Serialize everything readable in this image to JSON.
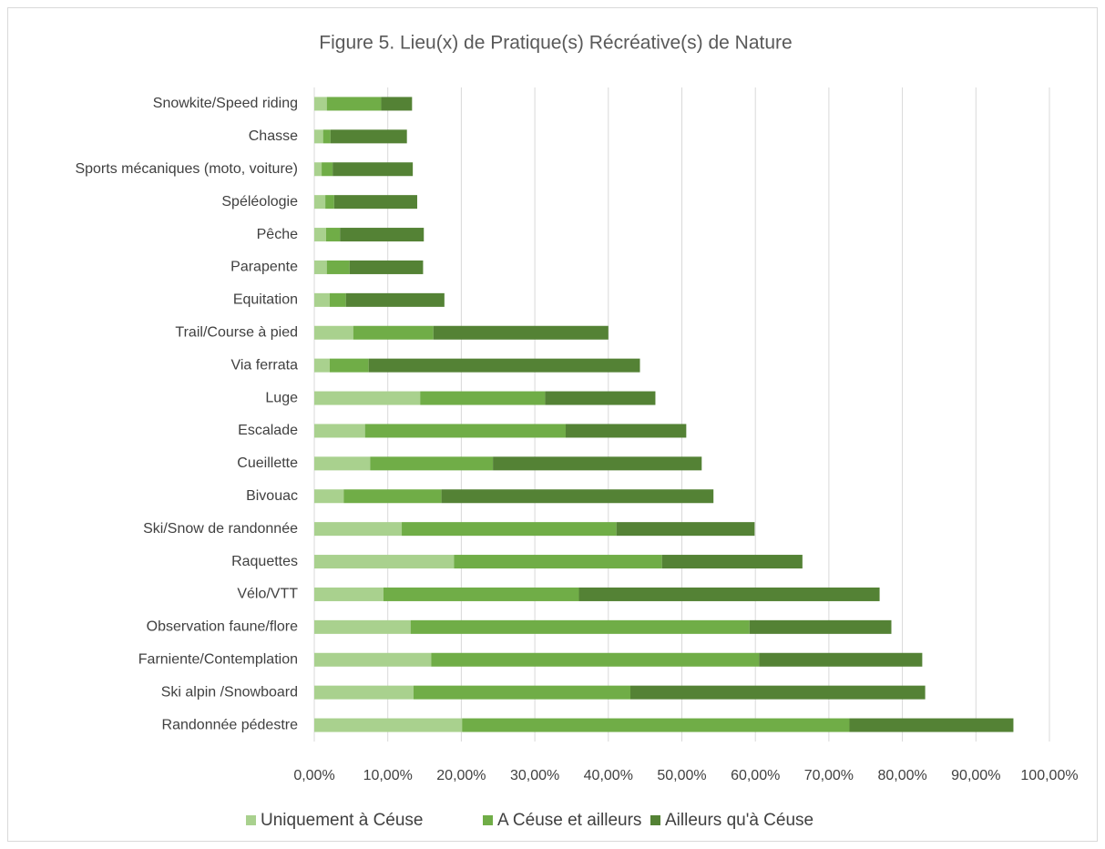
{
  "chart_data": {
    "type": "stacked-bar-horizontal",
    "title": "Figure 5. Lieu(x) de Pratique(s)  Récréative(s) de Nature",
    "categories": [
      "Snowkite/Speed riding",
      "Chasse",
      "Sports mécaniques (moto, voiture)",
      "Spéléologie",
      "Pêche",
      "Parapente",
      "Equitation",
      "Trail/Course à pied",
      "Via ferrata",
      "Luge",
      "Escalade",
      "Cueillette",
      "Bivouac",
      "Ski/Snow de randonnée",
      "Raquettes",
      "Vélo/VTT",
      "Observation faune/flore",
      "Farniente/Contemplation",
      "Ski alpin /Snowboard",
      "Randonnée pédestre"
    ],
    "series": [
      {
        "name": "Uniquement à Céuse",
        "color": "#a9d18e",
        "values": [
          1.7,
          1.2,
          1.0,
          1.5,
          1.6,
          1.7,
          2.1,
          5.3,
          2.1,
          14.4,
          6.9,
          7.6,
          4.0,
          11.9,
          19.0,
          9.4,
          13.1,
          15.9,
          13.5,
          20.1
        ]
      },
      {
        "name": "A Céuse et ailleurs",
        "color": "#70ad47",
        "values": [
          7.4,
          1.0,
          1.5,
          1.2,
          1.9,
          3.1,
          2.2,
          10.9,
          5.3,
          17.0,
          27.3,
          16.7,
          13.3,
          29.2,
          28.3,
          26.6,
          46.1,
          44.6,
          29.5,
          52.7
        ]
      },
      {
        "name": "Ailleurs qu'à Céuse",
        "color": "#548235",
        "values": [
          4.2,
          10.4,
          10.9,
          11.3,
          11.4,
          10.0,
          13.4,
          23.8,
          36.9,
          15.0,
          16.4,
          28.4,
          37.0,
          18.8,
          19.1,
          40.9,
          19.3,
          22.2,
          40.1,
          22.3
        ]
      }
    ],
    "xlim": [
      0,
      100
    ],
    "xticks": [
      {
        "value": 0,
        "label": "0,00%"
      },
      {
        "value": 10,
        "label": "10,00%"
      },
      {
        "value": 20,
        "label": "20,00%"
      },
      {
        "value": 30,
        "label": "30,00%"
      },
      {
        "value": 40,
        "label": "40,00%"
      },
      {
        "value": 50,
        "label": "50,00%"
      },
      {
        "value": 60,
        "label": "60,00%"
      },
      {
        "value": 70,
        "label": "70,00%"
      },
      {
        "value": 80,
        "label": "80,00%"
      },
      {
        "value": 90,
        "label": "90,00%"
      },
      {
        "value": 100,
        "label": "100,00%"
      }
    ],
    "grid": true,
    "legend": "bottom"
  }
}
